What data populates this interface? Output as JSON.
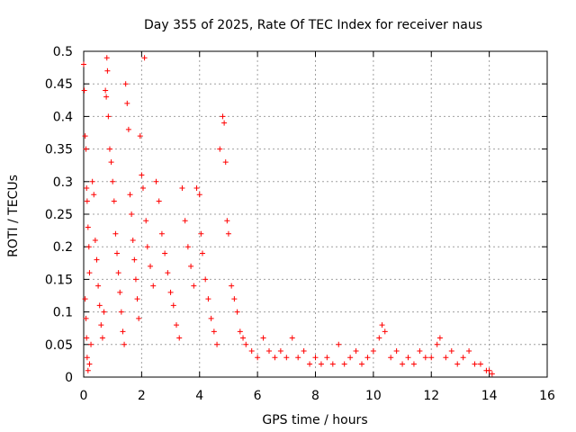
{
  "chart_data": {
    "type": "scatter",
    "title": "Day 355 of 2025, Rate Of TEC Index for receiver naus",
    "xlabel": "GPS time / hours",
    "ylabel": "ROTI / TECUs",
    "xlim": [
      0,
      16
    ],
    "ylim": [
      0,
      0.5
    ],
    "x_ticks": [
      "0",
      "2",
      "4",
      "6",
      "8",
      "10",
      "12",
      "14",
      "16"
    ],
    "y_ticks": [
      "0",
      "0.05",
      "0.1",
      "0.15",
      "0.2",
      "0.25",
      "0.3",
      "0.35",
      "0.4",
      "0.45",
      "0.5"
    ],
    "x_tick_values": [
      0,
      2,
      4,
      6,
      8,
      10,
      12,
      14,
      16
    ],
    "y_tick_values": [
      0,
      0.05,
      0.1,
      0.15,
      0.2,
      0.25,
      0.3,
      0.35,
      0.4,
      0.45,
      0.5
    ],
    "grid": true,
    "marker": "+",
    "marker_color": "#ff0000",
    "series": [
      {
        "name": "ROTI",
        "points": [
          [
            0.0,
            0.48
          ],
          [
            0.02,
            0.44
          ],
          [
            0.05,
            0.37
          ],
          [
            0.08,
            0.35
          ],
          [
            0.1,
            0.29
          ],
          [
            0.12,
            0.27
          ],
          [
            0.15,
            0.23
          ],
          [
            0.18,
            0.2
          ],
          [
            0.2,
            0.16
          ],
          [
            0.05,
            0.12
          ],
          [
            0.08,
            0.09
          ],
          [
            0.1,
            0.06
          ],
          [
            0.12,
            0.03
          ],
          [
            0.15,
            0.01
          ],
          [
            0.2,
            0.02
          ],
          [
            0.25,
            0.05
          ],
          [
            0.3,
            0.3
          ],
          [
            0.35,
            0.28
          ],
          [
            0.4,
            0.21
          ],
          [
            0.45,
            0.18
          ],
          [
            0.5,
            0.14
          ],
          [
            0.55,
            0.11
          ],
          [
            0.6,
            0.08
          ],
          [
            0.65,
            0.06
          ],
          [
            0.7,
            0.1
          ],
          [
            0.75,
            0.44
          ],
          [
            0.78,
            0.43
          ],
          [
            0.8,
            0.49
          ],
          [
            0.82,
            0.47
          ],
          [
            0.85,
            0.4
          ],
          [
            0.9,
            0.35
          ],
          [
            0.95,
            0.33
          ],
          [
            1.0,
            0.3
          ],
          [
            1.05,
            0.27
          ],
          [
            1.1,
            0.22
          ],
          [
            1.15,
            0.19
          ],
          [
            1.2,
            0.16
          ],
          [
            1.25,
            0.13
          ],
          [
            1.3,
            0.1
          ],
          [
            1.35,
            0.07
          ],
          [
            1.4,
            0.05
          ],
          [
            1.45,
            0.45
          ],
          [
            1.5,
            0.42
          ],
          [
            1.55,
            0.38
          ],
          [
            1.6,
            0.28
          ],
          [
            1.65,
            0.25
          ],
          [
            1.7,
            0.21
          ],
          [
            1.75,
            0.18
          ],
          [
            1.8,
            0.15
          ],
          [
            1.85,
            0.12
          ],
          [
            1.9,
            0.09
          ],
          [
            1.95,
            0.37
          ],
          [
            2.0,
            0.31
          ],
          [
            2.05,
            0.29
          ],
          [
            2.1,
            0.49
          ],
          [
            2.15,
            0.24
          ],
          [
            2.2,
            0.2
          ],
          [
            2.3,
            0.17
          ],
          [
            2.4,
            0.14
          ],
          [
            2.5,
            0.3
          ],
          [
            2.6,
            0.27
          ],
          [
            2.7,
            0.22
          ],
          [
            2.8,
            0.19
          ],
          [
            2.9,
            0.16
          ],
          [
            3.0,
            0.13
          ],
          [
            3.1,
            0.11
          ],
          [
            3.2,
            0.08
          ],
          [
            3.3,
            0.06
          ],
          [
            3.4,
            0.29
          ],
          [
            3.5,
            0.24
          ],
          [
            3.6,
            0.2
          ],
          [
            3.7,
            0.17
          ],
          [
            3.8,
            0.14
          ],
          [
            3.9,
            0.29
          ],
          [
            4.0,
            0.28
          ],
          [
            4.05,
            0.22
          ],
          [
            4.1,
            0.19
          ],
          [
            4.2,
            0.15
          ],
          [
            4.3,
            0.12
          ],
          [
            4.4,
            0.09
          ],
          [
            4.5,
            0.07
          ],
          [
            4.6,
            0.05
          ],
          [
            4.7,
            0.35
          ],
          [
            4.8,
            0.4
          ],
          [
            4.85,
            0.39
          ],
          [
            4.9,
            0.33
          ],
          [
            4.95,
            0.24
          ],
          [
            5.0,
            0.22
          ],
          [
            5.1,
            0.14
          ],
          [
            5.2,
            0.12
          ],
          [
            5.3,
            0.1
          ],
          [
            5.4,
            0.07
          ],
          [
            5.5,
            0.06
          ],
          [
            5.6,
            0.05
          ],
          [
            5.8,
            0.04
          ],
          [
            6.0,
            0.03
          ],
          [
            6.2,
            0.06
          ],
          [
            6.4,
            0.04
          ],
          [
            6.6,
            0.03
          ],
          [
            6.8,
            0.04
          ],
          [
            7.0,
            0.03
          ],
          [
            7.2,
            0.06
          ],
          [
            7.4,
            0.03
          ],
          [
            7.6,
            0.04
          ],
          [
            7.8,
            0.02
          ],
          [
            8.0,
            0.03
          ],
          [
            8.2,
            0.02
          ],
          [
            8.4,
            0.03
          ],
          [
            8.6,
            0.02
          ],
          [
            8.8,
            0.05
          ],
          [
            9.0,
            0.02
          ],
          [
            9.2,
            0.03
          ],
          [
            9.4,
            0.04
          ],
          [
            9.6,
            0.02
          ],
          [
            9.8,
            0.03
          ],
          [
            10.0,
            0.04
          ],
          [
            10.2,
            0.06
          ],
          [
            10.3,
            0.08
          ],
          [
            10.4,
            0.07
          ],
          [
            10.6,
            0.03
          ],
          [
            10.8,
            0.04
          ],
          [
            11.0,
            0.02
          ],
          [
            11.2,
            0.03
          ],
          [
            11.4,
            0.02
          ],
          [
            11.6,
            0.04
          ],
          [
            11.8,
            0.03
          ],
          [
            12.0,
            0.03
          ],
          [
            12.2,
            0.05
          ],
          [
            12.3,
            0.06
          ],
          [
            12.5,
            0.03
          ],
          [
            12.7,
            0.04
          ],
          [
            12.9,
            0.02
          ],
          [
            13.1,
            0.03
          ],
          [
            13.3,
            0.04
          ],
          [
            13.5,
            0.02
          ],
          [
            13.7,
            0.02
          ],
          [
            13.9,
            0.01
          ],
          [
            14.0,
            0.01
          ],
          [
            14.1,
            0.005
          ]
        ]
      }
    ]
  }
}
